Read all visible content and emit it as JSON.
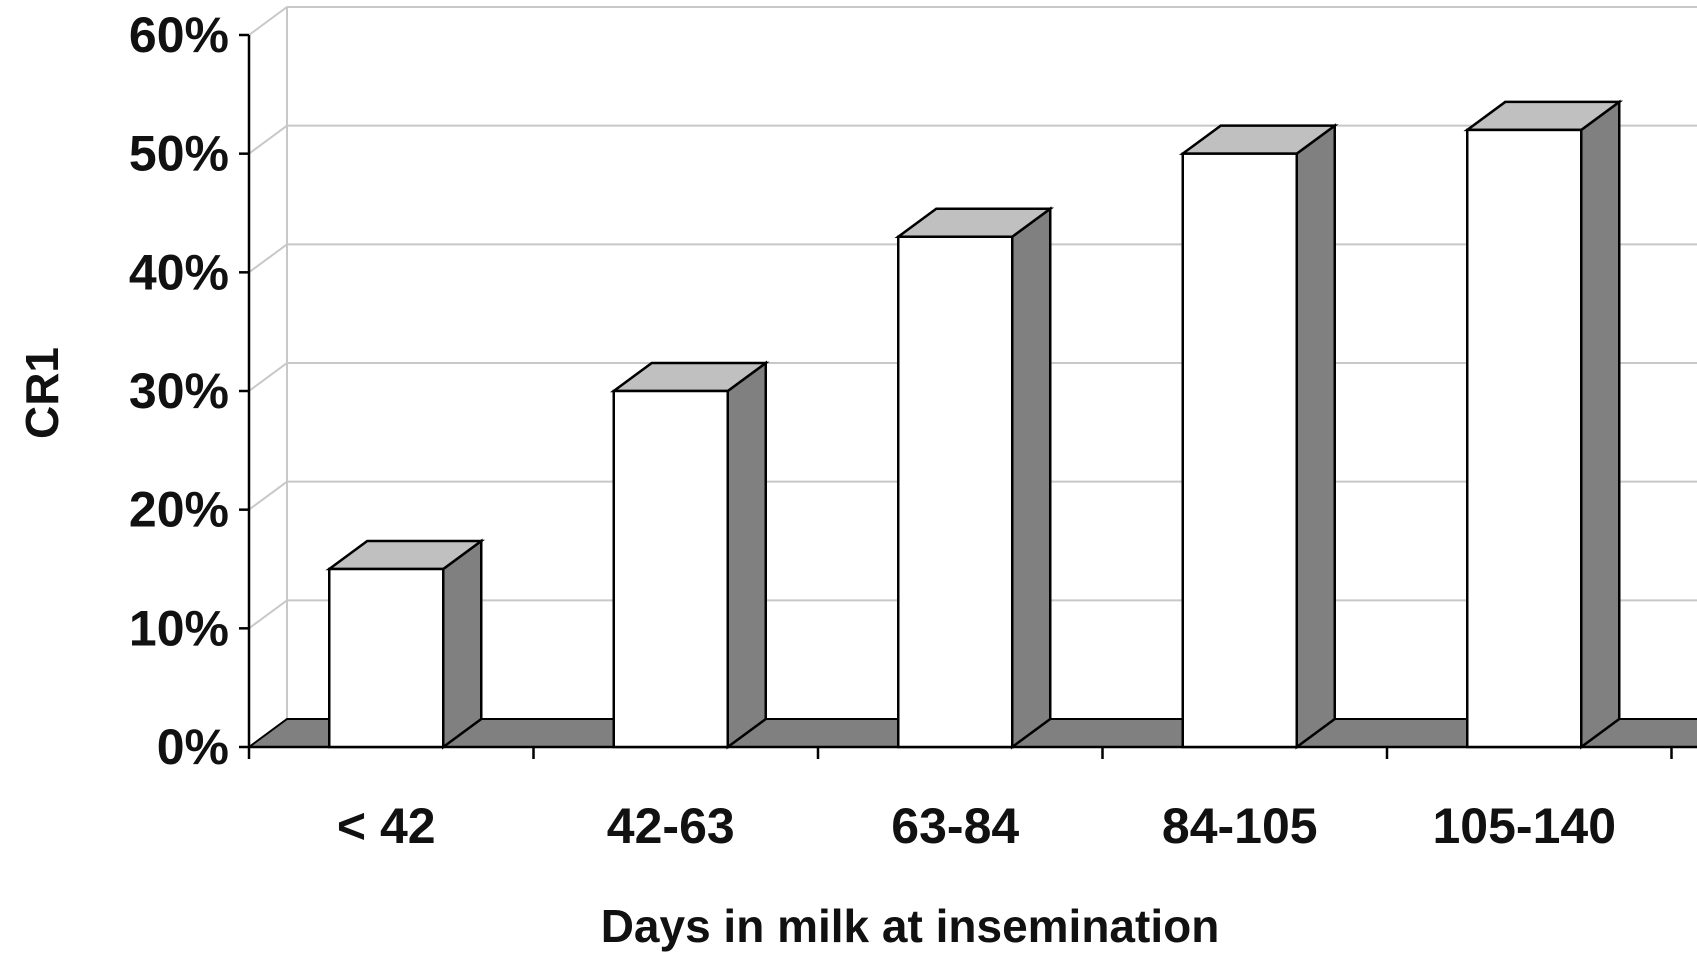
{
  "chart_data": {
    "type": "bar",
    "categories": [
      "< 42",
      "42-63",
      "63-84",
      "84-105",
      "105-140"
    ],
    "values": [
      15,
      30,
      43,
      50,
      52
    ],
    "unit": "%",
    "xlabel": "Days in milk at insemination",
    "ylabel": "CR1",
    "ylim": [
      0,
      60
    ],
    "yticks": [
      "0%",
      "10%",
      "20%",
      "30%",
      "40%",
      "50%",
      "60%"
    ],
    "grid": true,
    "style": "3d-column",
    "colors": {
      "bar_front": "#ffffff",
      "bar_side": "#808080",
      "bar_top": "#c0c0c0",
      "floor": "#808080",
      "grid": "#c8c8c8"
    }
  }
}
